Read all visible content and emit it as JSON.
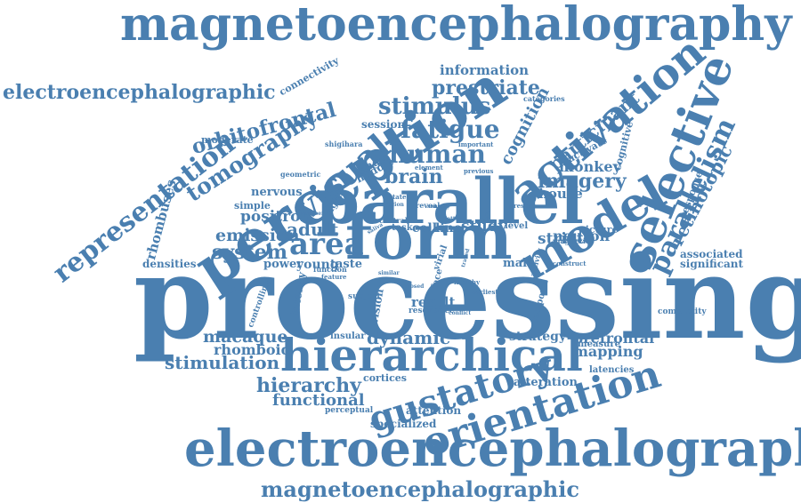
{
  "color": "#4a7fb0",
  "words": [
    {
      "text": "processing"
    },
    {
      "text": "magnetoencephalography"
    },
    {
      "text": "electroencephalography"
    },
    {
      "text": "perception"
    },
    {
      "text": "parallel"
    },
    {
      "text": "hierarchical"
    },
    {
      "text": "form"
    },
    {
      "text": "selective"
    },
    {
      "text": "activation"
    },
    {
      "text": "model"
    },
    {
      "text": "orientation"
    },
    {
      "text": "gustatory"
    },
    {
      "text": "magnetoencephalographic"
    },
    {
      "text": "electroencephalographic"
    },
    {
      "text": "representation"
    },
    {
      "text": "visual"
    },
    {
      "text": "area"
    },
    {
      "text": "stimulus"
    },
    {
      "text": "fatigue"
    },
    {
      "text": "human"
    },
    {
      "text": "orbitofrontal"
    },
    {
      "text": "tomography"
    },
    {
      "text": "parallelism"
    },
    {
      "text": "prestriate"
    },
    {
      "text": "stimulation"
    },
    {
      "text": "system"
    },
    {
      "text": "emission"
    },
    {
      "text": "hierarchy"
    },
    {
      "text": "dynamic"
    },
    {
      "text": "macaque"
    },
    {
      "text": "adult"
    },
    {
      "text": "brain"
    },
    {
      "text": "imagery"
    },
    {
      "text": "retinotopic"
    },
    {
      "text": "participant"
    },
    {
      "text": "functional"
    },
    {
      "text": "cognition"
    },
    {
      "text": "information"
    },
    {
      "text": "positron"
    },
    {
      "text": "rhomboid"
    },
    {
      "text": "mapping"
    },
    {
      "text": "prefrontal"
    },
    {
      "text": "monkey"
    },
    {
      "text": "study"
    },
    {
      "text": "striate"
    },
    {
      "text": "neuron"
    },
    {
      "text": "house"
    },
    {
      "text": "strategy"
    },
    {
      "text": "result"
    },
    {
      "text": "rhombuses"
    },
    {
      "text": "connectivity"
    },
    {
      "text": "session"
    },
    {
      "text": "nervous"
    },
    {
      "text": "cortices"
    },
    {
      "text": "alteration"
    },
    {
      "text": "attention"
    },
    {
      "text": "specialized"
    },
    {
      "text": "latency"
    },
    {
      "text": "vision"
    },
    {
      "text": "cell"
    },
    {
      "text": "line"
    },
    {
      "text": "young"
    },
    {
      "text": "taste"
    },
    {
      "text": "power"
    },
    {
      "text": "male"
    },
    {
      "text": "associated"
    },
    {
      "text": "significant"
    },
    {
      "text": "densities"
    },
    {
      "text": "angle"
    },
    {
      "text": "middle"
    },
    {
      "text": "moderate"
    },
    {
      "text": "simple"
    },
    {
      "text": "insular"
    },
    {
      "text": "task"
    },
    {
      "text": "level"
    },
    {
      "text": "picture"
    },
    {
      "text": "activate"
    },
    {
      "text": "cognitive"
    },
    {
      "text": "response"
    },
    {
      "text": "latencies"
    },
    {
      "text": "measure"
    },
    {
      "text": "complexity"
    },
    {
      "text": "perceptual"
    },
    {
      "text": "resonance"
    },
    {
      "text": "subject"
    },
    {
      "text": "temporal"
    },
    {
      "text": "controlling"
    },
    {
      "text": "function"
    },
    {
      "text": "feature"
    },
    {
      "text": "face"
    },
    {
      "text": "virial"
    },
    {
      "text": "central"
    },
    {
      "text": "geometric"
    },
    {
      "text": "shigihara"
    },
    {
      "text": "element"
    },
    {
      "text": "previous"
    },
    {
      "text": "important"
    },
    {
      "text": "categories"
    },
    {
      "text": "reveal"
    },
    {
      "text": "present"
    },
    {
      "text": "magnetic"
    },
    {
      "text": "construct"
    },
    {
      "text": "activity"
    },
    {
      "text": "earliest"
    },
    {
      "text": "healthy"
    },
    {
      "text": "conflict"
    },
    {
      "text": "sensory"
    },
    {
      "text": "saliva"
    },
    {
      "text": "letter"
    },
    {
      "text": "traced"
    },
    {
      "text": "siged"
    },
    {
      "text": "number"
    },
    {
      "text": "region"
    },
    {
      "text": "closed"
    },
    {
      "text": "similar"
    },
    {
      "text": "visu"
    },
    {
      "text": "state"
    }
  ]
}
